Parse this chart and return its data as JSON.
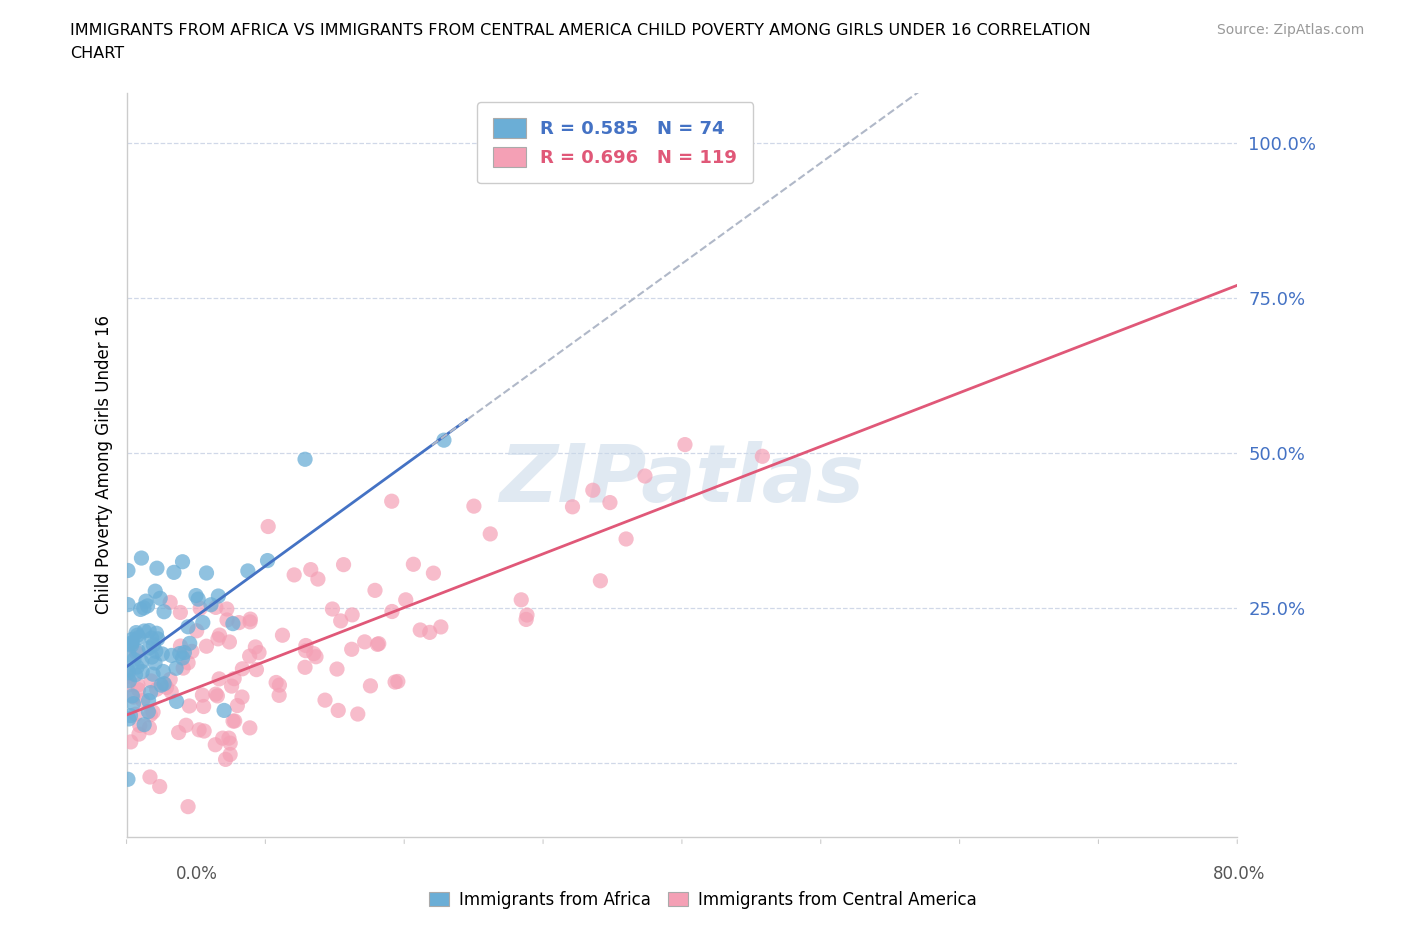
{
  "title_line1": "IMMIGRANTS FROM AFRICA VS IMMIGRANTS FROM CENTRAL AMERICA CHILD POVERTY AMONG GIRLS UNDER 16 CORRELATION",
  "title_line2": "CHART",
  "source": "Source: ZipAtlas.com",
  "ylabel": "Child Poverty Among Girls Under 16",
  "xlim": [
    0.0,
    0.8
  ],
  "ylim": [
    -0.12,
    1.08
  ],
  "ytick_vals": [
    0.0,
    0.25,
    0.5,
    0.75,
    1.0
  ],
  "ytick_labels": [
    "",
    "25.0%",
    "50.0%",
    "75.0%",
    "100.0%"
  ],
  "blue_R": 0.585,
  "blue_N": 74,
  "pink_R": 0.696,
  "pink_N": 119,
  "blue_color": "#6baed6",
  "pink_color": "#f4a0b5",
  "blue_line_color": "#4472c4",
  "pink_line_color": "#e05878",
  "dashed_line_color": "#b0b8c8",
  "watermark": "ZIPatlas",
  "tick_color": "#4472c4",
  "grid_color": "#d0d8e8"
}
